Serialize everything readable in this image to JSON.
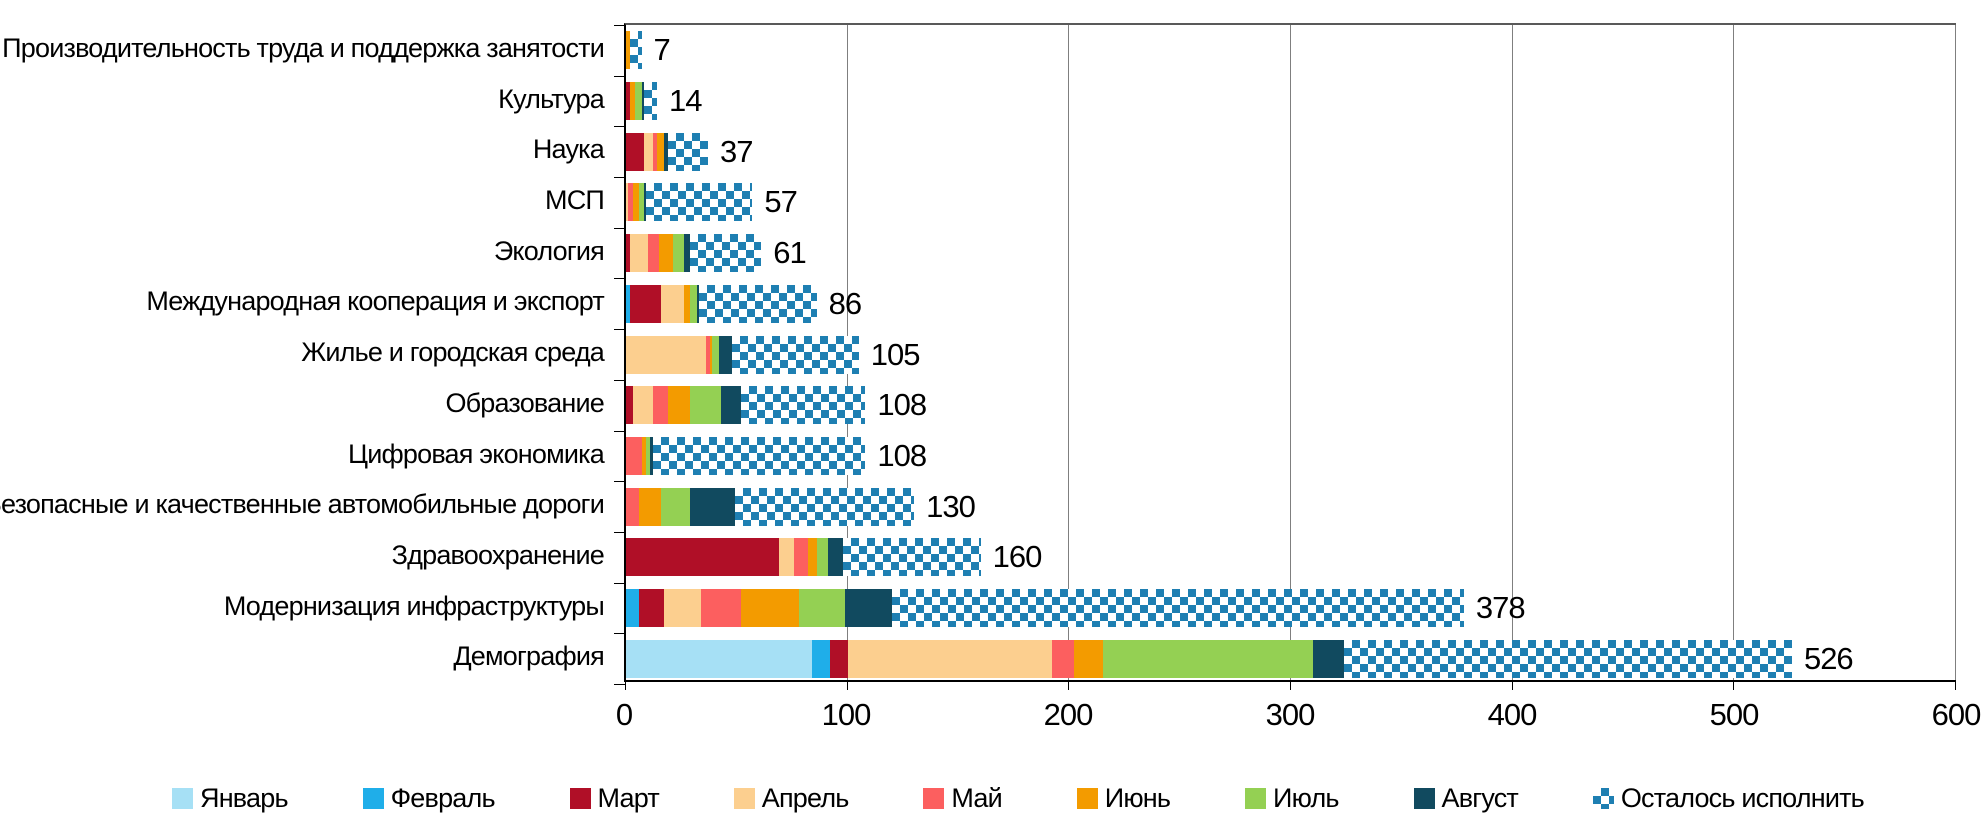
{
  "chart_data": {
    "type": "bar",
    "variant": "horizontal-stacked",
    "title": "",
    "xlabel": "",
    "ylabel": "",
    "grid": "vertical",
    "legend_position": "bottom",
    "x_axis": {
      "min": 0,
      "max": 600,
      "ticks": [
        0,
        100,
        200,
        300,
        400,
        500,
        600
      ]
    },
    "series": [
      {
        "name": "Январь",
        "color": "#a6e0f5",
        "pattern": false
      },
      {
        "name": "Февраль",
        "color": "#1faee9",
        "pattern": false
      },
      {
        "name": "Март",
        "color": "#b00f27",
        "pattern": false
      },
      {
        "name": "Апрель",
        "color": "#fccf8f",
        "pattern": false
      },
      {
        "name": "Май",
        "color": "#fc5f5f",
        "pattern": false
      },
      {
        "name": "Июнь",
        "color": "#f39b00",
        "pattern": false
      },
      {
        "name": "Июль",
        "color": "#94d053",
        "pattern": false
      },
      {
        "name": "Август",
        "color": "#114a5f",
        "pattern": false
      },
      {
        "name": "Осталось исполнить",
        "color": "#1e7fb2",
        "pattern": true
      }
    ],
    "categories": [
      {
        "label": "Производительность труда и поддержка занятости",
        "total": 7,
        "values": [
          0,
          0,
          0,
          0,
          0,
          2,
          0,
          0,
          5
        ]
      },
      {
        "label": "Культура",
        "total": 14,
        "values": [
          0,
          0,
          2,
          0,
          0,
          2,
          3,
          1,
          6
        ]
      },
      {
        "label": "Наука",
        "total": 37,
        "values": [
          0,
          0,
          8,
          4,
          2,
          3,
          0,
          2,
          18
        ]
      },
      {
        "label": "МСП",
        "total": 57,
        "values": [
          0,
          0,
          0,
          1,
          2,
          3,
          2,
          1,
          48
        ]
      },
      {
        "label": "Экология",
        "total": 61,
        "values": [
          0,
          0,
          2,
          8,
          5,
          6,
          5,
          3,
          32
        ]
      },
      {
        "label": "Международная кооперация и экспорт",
        "total": 86,
        "values": [
          0,
          2,
          14,
          10,
          0,
          3,
          3,
          1,
          53
        ]
      },
      {
        "label": "Жилье и городская среда",
        "total": 105,
        "values": [
          0,
          0,
          0,
          36,
          2,
          1,
          3,
          6,
          57
        ]
      },
      {
        "label": "Образование",
        "total": 108,
        "values": [
          0,
          0,
          3,
          9,
          7,
          10,
          14,
          9,
          56
        ]
      },
      {
        "label": "Цифровая экономика",
        "total": 108,
        "values": [
          0,
          0,
          0,
          0,
          7,
          2,
          2,
          1,
          96
        ]
      },
      {
        "label": "Безопасные и качественные автомобильные дороги",
        "total": 130,
        "values": [
          0,
          0,
          0,
          0,
          6,
          10,
          13,
          20,
          81
        ]
      },
      {
        "label": "Здравоохранение",
        "total": 160,
        "values": [
          0,
          0,
          69,
          7,
          6,
          4,
          5,
          7,
          62
        ]
      },
      {
        "label": "Модернизация инфраструктуры",
        "total": 378,
        "values": [
          0,
          6,
          11,
          17,
          18,
          26,
          21,
          21,
          258
        ]
      },
      {
        "label": "Демография",
        "total": 526,
        "values": [
          84,
          8,
          8,
          92,
          10,
          13,
          95,
          14,
          202
        ]
      }
    ]
  }
}
